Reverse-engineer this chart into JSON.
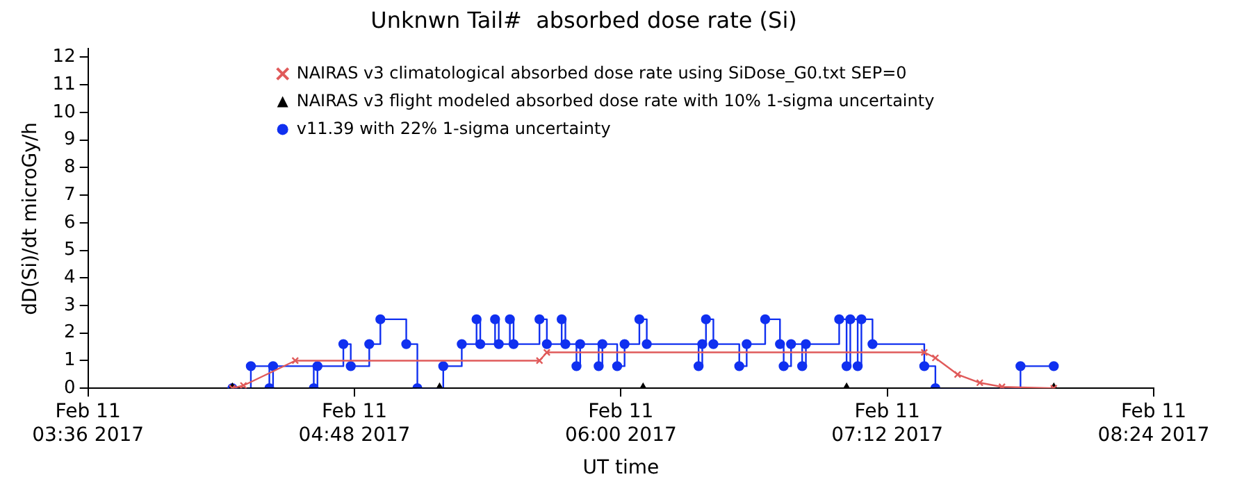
{
  "chart_data": {
    "type": "step",
    "title": "Unknwn Tail#  absorbed dose rate (Si)",
    "xlabel": "UT time",
    "ylabel": "dD(Si)/dt microGy/h",
    "xlim": [
      "2017-02-11T03:36",
      "2017-02-11T08:24"
    ],
    "xticks": [
      {
        "value": "2017-02-11T03:36",
        "label": "Feb 11\n03:36 2017"
      },
      {
        "value": "2017-02-11T04:48",
        "label": "Feb 11\n04:48 2017"
      },
      {
        "value": "2017-02-11T06:00",
        "label": "Feb 11\n06:00 2017"
      },
      {
        "value": "2017-02-11T07:12",
        "label": "Feb 11\n07:12 2017"
      },
      {
        "value": "2017-02-11T08:24",
        "label": "Feb 11\n08:24 2017"
      }
    ],
    "ylim": [
      0,
      12.3
    ],
    "yticks": [
      0,
      1,
      2,
      3,
      4,
      5,
      6,
      7,
      8,
      9,
      10,
      11,
      12
    ],
    "grid": false,
    "legend": "top",
    "series": [
      {
        "name": "NAIRAS v3 climatological absorbed dose rate using SiDose_G0.txt SEP=0",
        "type": "line",
        "color": "#e05a5a",
        "marker": "cross",
        "x": [
          "2017-02-11T04:15",
          "2017-02-11T04:18",
          "2017-02-11T04:32",
          "2017-02-11T05:38",
          "2017-02-11T05:40",
          "2017-02-11T07:22",
          "2017-02-11T07:25",
          "2017-02-11T07:31",
          "2017-02-11T07:37",
          "2017-02-11T07:43",
          "2017-02-11T07:57"
        ],
        "values": [
          0,
          0.1,
          1.0,
          1.0,
          1.3,
          1.3,
          1.1,
          0.5,
          0.2,
          0.05,
          0
        ]
      },
      {
        "name": "NAIRAS v3 flight modeled absorbed dose rate with 10% 1-sigma uncertainty",
        "type": "line",
        "color": "#000000",
        "marker": "triangle",
        "x": [
          "2017-02-11T04:15",
          "2017-02-11T05:11",
          "2017-02-11T06:06",
          "2017-02-11T07:01",
          "2017-02-11T07:57"
        ],
        "values": [
          0,
          0,
          0,
          0,
          0
        ]
      },
      {
        "name": "v11.39 with 22% 1-sigma uncertainty",
        "type": "step",
        "color": "#1030f0",
        "marker": "circle",
        "x": [
          "2017-02-11T04:15",
          "2017-02-11T04:20",
          "2017-02-11T04:25",
          "2017-02-11T04:26",
          "2017-02-11T04:37",
          "2017-02-11T04:38",
          "2017-02-11T04:45",
          "2017-02-11T04:47",
          "2017-02-11T04:52",
          "2017-02-11T04:55",
          "2017-02-11T05:02",
          "2017-02-11T05:05",
          "2017-02-11T05:12",
          "2017-02-11T05:17",
          "2017-02-11T05:21",
          "2017-02-11T05:22",
          "2017-02-11T05:26",
          "2017-02-11T05:27",
          "2017-02-11T05:30",
          "2017-02-11T05:31",
          "2017-02-11T05:38",
          "2017-02-11T05:40",
          "2017-02-11T05:44",
          "2017-02-11T05:45",
          "2017-02-11T05:48",
          "2017-02-11T05:49",
          "2017-02-11T05:54",
          "2017-02-11T05:55",
          "2017-02-11T05:59",
          "2017-02-11T06:01",
          "2017-02-11T06:05",
          "2017-02-11T06:07",
          "2017-02-11T06:21",
          "2017-02-11T06:22",
          "2017-02-11T06:23",
          "2017-02-11T06:25",
          "2017-02-11T06:32",
          "2017-02-11T06:34",
          "2017-02-11T06:39",
          "2017-02-11T06:43",
          "2017-02-11T06:44",
          "2017-02-11T06:46",
          "2017-02-11T06:49",
          "2017-02-11T06:50",
          "2017-02-11T06:59",
          "2017-02-11T07:01",
          "2017-02-11T07:02",
          "2017-02-11T07:04",
          "2017-02-11T07:05",
          "2017-02-11T07:08",
          "2017-02-11T07:22",
          "2017-02-11T07:25",
          "2017-02-11T07:48",
          "2017-02-11T07:57"
        ],
        "values": [
          0,
          0.8,
          0,
          0.8,
          0,
          0.8,
          1.6,
          0.8,
          1.6,
          2.5,
          1.6,
          0,
          0.8,
          1.6,
          2.5,
          1.6,
          2.5,
          1.6,
          2.5,
          1.6,
          2.5,
          1.6,
          2.5,
          1.6,
          0.8,
          1.6,
          0.8,
          1.6,
          0.8,
          1.6,
          2.5,
          1.6,
          0.8,
          1.6,
          2.5,
          1.6,
          0.8,
          1.6,
          2.5,
          1.6,
          0.8,
          1.6,
          0.8,
          1.6,
          2.5,
          0.8,
          2.5,
          0.8,
          2.5,
          1.6,
          0.8,
          0,
          0.8,
          0.8
        ]
      }
    ]
  }
}
